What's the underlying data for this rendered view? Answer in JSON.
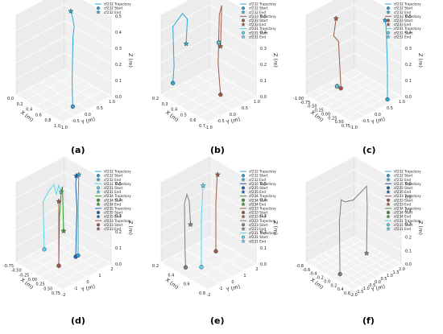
{
  "figure": {
    "panel_labels": [
      "(a)",
      "(b)",
      "(c)",
      "(d)",
      "(e)",
      "(f)"
    ]
  },
  "colors": {
    "cf232": "#29a8d8",
    "cf233": "#a05a4a",
    "cf231": "#59d4f0",
    "cf234": "#3a9a2a",
    "cf235": "#1f5fb0",
    "cf223": "#7f7f7f",
    "grid": "#d0d0d0",
    "pane": "#f4f4f4"
  },
  "chart_data": [
    {
      "type": "line",
      "panel": "(a)",
      "legend": [
        {
          "text": "cf232 Trajectory",
          "kind": "line",
          "color": "#29a8d8"
        },
        {
          "text": "cf232 Start",
          "kind": "circle",
          "color": "#29a8d8"
        },
        {
          "text": "cf232 End",
          "kind": "star",
          "color": "#29a8d8"
        }
      ],
      "xlabel": "X (m)",
      "ylabel": "Y (m)",
      "zlabel": "Z (m)",
      "xticks": [
        "0.0",
        "0.2",
        "0.4",
        "0.6",
        "0.8",
        "1.0"
      ],
      "yticks": [
        "-1.0",
        "-0.5",
        "0.0",
        "0.5",
        "1.0"
      ],
      "zticks": [
        "0.0",
        "0.1",
        "0.2",
        "0.3",
        "0.4",
        "0.5"
      ],
      "series": [
        {
          "name": "cf232",
          "color": "#29a8d8",
          "x": [
            0.8,
            0.78,
            0.76,
            0.74,
            0.72,
            0.7,
            0.7,
            0.69,
            0.68
          ],
          "y": [
            -0.2,
            -0.18,
            -0.15,
            -0.1,
            -0.05,
            0.0,
            0.05,
            0.0,
            -0.05
          ],
          "z": [
            0.0,
            0.08,
            0.16,
            0.24,
            0.32,
            0.4,
            0.46,
            0.52,
            0.56
          ]
        }
      ]
    },
    {
      "type": "line",
      "panel": "(b)",
      "legend": [
        {
          "text": "cf232 Trajectory",
          "kind": "line",
          "color": "#29a8d8"
        },
        {
          "text": "cf232 Start",
          "kind": "circle",
          "color": "#29a8d8"
        },
        {
          "text": "cf232 End",
          "kind": "star",
          "color": "#29a8d8"
        },
        {
          "text": "cf233 Trajectory",
          "kind": "line",
          "color": "#a05a4a"
        },
        {
          "text": "cf233 Start",
          "kind": "circle",
          "color": "#a05a4a"
        },
        {
          "text": "cf233 End",
          "kind": "star",
          "color": "#a05a4a"
        },
        {
          "text": "cf231 Trajectory",
          "kind": "line",
          "color": "#59d4f0"
        },
        {
          "text": "cf231 Start",
          "kind": "circle",
          "color": "#59d4f0"
        },
        {
          "text": "cf231 End",
          "kind": "star",
          "color": "#59d4f0"
        }
      ],
      "xlabel": "X (m)",
      "ylabel": "Y (m)",
      "zlabel": "Z (m)",
      "xticks": [
        "0.2",
        "0.3",
        "0.4",
        "0.5",
        "0.6",
        "0.7"
      ],
      "yticks": [
        "-1.0",
        "-0.5",
        "0.0",
        "0.5",
        "1.0"
      ],
      "zticks": [
        "0.0",
        "0.1",
        "0.2",
        "0.3",
        "0.4",
        "0.5"
      ],
      "series": [
        {
          "name": "cf232",
          "color": "#29a8d8",
          "x": [
            0.3,
            0.3,
            0.3,
            0.3,
            0.3,
            0.3
          ],
          "y": [
            -0.9,
            -0.85,
            -0.9,
            -0.5,
            -0.3,
            -0.35
          ],
          "z": [
            0.1,
            0.2,
            0.45,
            0.5,
            0.45,
            0.3
          ]
        },
        {
          "name": "cf233",
          "color": "#a05a4a",
          "x": [
            0.5,
            0.5,
            0.5,
            0.5,
            0.5
          ],
          "y": [
            0.3,
            0.2,
            0.25,
            0.35,
            0.3
          ],
          "z": [
            0.0,
            0.2,
            0.5,
            0.55,
            0.3
          ]
        },
        {
          "name": "cf231",
          "color": "#59d4f0",
          "x": [
            0.3,
            0.3
          ],
          "y": [
            1.0,
            1.0
          ],
          "z": [
            0.2,
            0.2
          ]
        }
      ]
    },
    {
      "type": "line",
      "panel": "(c)",
      "legend": [
        {
          "text": "cf232 Trajectory",
          "kind": "line",
          "color": "#29a8d8"
        },
        {
          "text": "cf232 Start",
          "kind": "circle",
          "color": "#29a8d8"
        },
        {
          "text": "cf232 End",
          "kind": "star",
          "color": "#29a8d8"
        },
        {
          "text": "cf233 Trajectory",
          "kind": "line",
          "color": "#a05a4a"
        },
        {
          "text": "cf233 Start",
          "kind": "circle",
          "color": "#a05a4a"
        },
        {
          "text": "cf233 End",
          "kind": "star",
          "color": "#a05a4a"
        },
        {
          "text": "cf231 Trajectory",
          "kind": "line",
          "color": "#59d4f0"
        },
        {
          "text": "cf231 Start",
          "kind": "circle",
          "color": "#59d4f0"
        },
        {
          "text": "cf231 End",
          "kind": "star",
          "color": "#59d4f0"
        }
      ],
      "xlabel": "X (m)",
      "ylabel": "Y (m)",
      "zlabel": "Z (m)",
      "xticks": [
        "-1.00",
        "-0.75",
        "-0.50",
        "-0.25",
        "0.00",
        "0.25",
        "0.50",
        "0.75"
      ],
      "yticks": [
        "-1.0",
        "-0.5",
        "0.0",
        "0.5",
        "1.0"
      ],
      "zticks": [
        "0.0",
        "0.1",
        "0.2",
        "0.3",
        "0.4",
        "0.5"
      ],
      "series": [
        {
          "name": "cf232",
          "color": "#29a8d8",
          "x": [
            0.6,
            0.6,
            0.6,
            0.6
          ],
          "y": [
            0.6,
            0.6,
            0.55,
            0.5
          ],
          "z": [
            0.0,
            0.2,
            0.45,
            0.5
          ]
        },
        {
          "name": "cf233",
          "color": "#a05a4a",
          "x": [
            -0.6,
            -0.6,
            -0.6,
            -0.6
          ],
          "y": [
            0.0,
            -0.1,
            -0.3,
            -0.2
          ],
          "z": [
            0.0,
            0.3,
            0.35,
            0.45
          ]
        },
        {
          "name": "cf231",
          "color": "#59d4f0",
          "x": [
            -0.2,
            -0.2
          ],
          "y": [
            -0.6,
            -0.6
          ],
          "z": [
            0.1,
            0.1
          ]
        }
      ]
    },
    {
      "type": "line",
      "panel": "(d)",
      "legend": [
        {
          "text": "cf232 Trajectory",
          "kind": "line",
          "color": "#29a8d8"
        },
        {
          "text": "cf232 Start",
          "kind": "circle",
          "color": "#29a8d8"
        },
        {
          "text": "cf232 End",
          "kind": "star",
          "color": "#29a8d8"
        },
        {
          "text": "cf231 Trajectory",
          "kind": "line",
          "color": "#59d4f0"
        },
        {
          "text": "cf231 Start",
          "kind": "circle",
          "color": "#59d4f0"
        },
        {
          "text": "cf231 End",
          "kind": "star",
          "color": "#59d4f0"
        },
        {
          "text": "cf234 Trajectory",
          "kind": "line",
          "color": "#3a9a2a"
        },
        {
          "text": "cf234 Start",
          "kind": "circle",
          "color": "#3a9a2a"
        },
        {
          "text": "cf234 End",
          "kind": "star",
          "color": "#3a9a2a"
        },
        {
          "text": "cf235 Trajectory",
          "kind": "line",
          "color": "#1f5fb0"
        },
        {
          "text": "cf235 Start",
          "kind": "circle",
          "color": "#1f5fb0"
        },
        {
          "text": "cf235 End",
          "kind": "star",
          "color": "#1f5fb0"
        },
        {
          "text": "cf233 Trajectory",
          "kind": "line",
          "color": "#a05a4a"
        },
        {
          "text": "cf233 Start",
          "kind": "circle",
          "color": "#a05a4a"
        },
        {
          "text": "cf233 End",
          "kind": "star",
          "color": "#a05a4a"
        }
      ],
      "xlabel": "X (m)",
      "ylabel": "Y (m)",
      "zlabel": "Z (m)",
      "xticks": [
        "-0.75",
        "-0.50",
        "-0.25",
        "0.00",
        "0.25",
        "0.50",
        "0.75"
      ],
      "yticks": [
        "-2",
        "-1",
        "0",
        "1",
        "2"
      ],
      "zticks": [
        "0.0",
        "0.1",
        "0.2",
        "0.3",
        "0.4",
        "0.5"
      ],
      "series": [
        {
          "name": "cf231",
          "color": "#59d4f0",
          "x": [
            0.0,
            0.0,
            0.0,
            0.0,
            0.0,
            0.0,
            0.0
          ],
          "y": [
            -1.6,
            -1.7,
            -1.2,
            -0.8,
            -0.6,
            -0.4,
            -0.2
          ],
          "z": [
            0.15,
            0.45,
            0.5,
            0.52,
            0.45,
            0.5,
            0.45
          ]
        },
        {
          "name": "cf234",
          "color": "#3a9a2a",
          "x": [
            0.0,
            0.0,
            0.0,
            0.0,
            0.0
          ],
          "y": [
            -0.4,
            -0.35,
            -0.2,
            -0.1,
            0.0
          ],
          "z": [
            0.0,
            0.3,
            0.45,
            0.48,
            0.2
          ]
        },
        {
          "name": "cf233",
          "color": "#a05a4a",
          "x": [
            0.0,
            0.0,
            0.0
          ],
          "y": [
            -0.4,
            -0.4,
            -0.4
          ],
          "z": [
            0.0,
            0.3,
            0.4
          ]
        },
        {
          "name": "cf235",
          "color": "#1f5fb0",
          "x": [
            0.0,
            0.0,
            0.0,
            0.0
          ],
          "y": [
            1.0,
            1.1,
            1.0,
            1.05
          ],
          "z": [
            0.0,
            0.3,
            0.45,
            0.5
          ]
        },
        {
          "name": "cf232",
          "color": "#29a8d8",
          "x": [
            0.0,
            0.0,
            0.0
          ],
          "y": [
            1.2,
            1.2,
            1.25
          ],
          "z": [
            0.0,
            0.3,
            0.5
          ]
        }
      ]
    },
    {
      "type": "line",
      "panel": "(e)",
      "legend": [
        {
          "text": "cf232 Trajectory",
          "kind": "line",
          "color": "#29a8d8"
        },
        {
          "text": "cf232 Start",
          "kind": "circle",
          "color": "#29a8d8"
        },
        {
          "text": "cf232 End",
          "kind": "star",
          "color": "#29a8d8"
        },
        {
          "text": "cf235 Trajectory",
          "kind": "line",
          "color": "#1f5fb0"
        },
        {
          "text": "cf235 Start",
          "kind": "circle",
          "color": "#1f5fb0"
        },
        {
          "text": "cf235 End",
          "kind": "star",
          "color": "#1f5fb0"
        },
        {
          "text": "cf234 Trajectory",
          "kind": "line",
          "color": "#3a9a2a"
        },
        {
          "text": "cf234 Start",
          "kind": "circle",
          "color": "#3a9a2a"
        },
        {
          "text": "cf234 End",
          "kind": "star",
          "color": "#3a9a2a"
        },
        {
          "text": "cf233 Trajectory",
          "kind": "line",
          "color": "#a05a4a"
        },
        {
          "text": "cf233 Start",
          "kind": "circle",
          "color": "#a05a4a"
        },
        {
          "text": "cf233 End",
          "kind": "star",
          "color": "#a05a4a"
        },
        {
          "text": "cf223 Trajectory",
          "kind": "line",
          "color": "#7f7f7f"
        },
        {
          "text": "cf223 Start",
          "kind": "circle",
          "color": "#7f7f7f"
        },
        {
          "text": "cf223 End",
          "kind": "star",
          "color": "#7f7f7f"
        },
        {
          "text": "cf231 Trajectory",
          "kind": "line",
          "color": "#59d4f0"
        },
        {
          "text": "cf231 Start",
          "kind": "circle",
          "color": "#59d4f0"
        },
        {
          "text": "cf231 End",
          "kind": "star",
          "color": "#59d4f0"
        }
      ],
      "xlabel": "X (m)",
      "ylabel": "Y (m)",
      "zlabel": "Z (m)",
      "xticks": [
        "0.2",
        "0.4",
        "0.6",
        "0.8"
      ],
      "yticks": [
        "-2",
        "-1",
        "0",
        "1",
        "2"
      ],
      "zticks": [
        "0.0",
        "0.1",
        "0.2",
        "0.3",
        "0.4",
        "0.5"
      ],
      "series": [
        {
          "name": "cf223",
          "color": "#7f7f7f",
          "x": [
            0.5,
            0.5,
            0.5,
            0.5,
            0.5,
            0.5
          ],
          "y": [
            -1.9,
            -1.95,
            -2.0,
            -1.8,
            -1.6,
            -1.5
          ],
          "z": [
            0.05,
            0.15,
            0.45,
            0.5,
            0.45,
            0.3
          ]
        },
        {
          "name": "cf231",
          "color": "#59d4f0",
          "x": [
            0.5,
            0.5,
            0.5,
            0.5
          ],
          "y": [
            -0.6,
            -0.6,
            -0.5,
            -0.45
          ],
          "z": [
            0.0,
            0.3,
            0.45,
            0.5
          ]
        },
        {
          "name": "cf233",
          "color": "#a05a4a",
          "x": [
            0.5,
            0.5,
            0.5,
            0.5
          ],
          "y": [
            0.6,
            0.6,
            0.7,
            0.75
          ],
          "z": [
            0.05,
            0.35,
            0.5,
            0.52
          ]
        }
      ]
    },
    {
      "type": "line",
      "panel": "(f)",
      "legend": [
        {
          "text": "cf232 Trajectory",
          "kind": "line",
          "color": "#29a8d8"
        },
        {
          "text": "cf232 Start",
          "kind": "circle",
          "color": "#29a8d8"
        },
        {
          "text": "cf232 End",
          "kind": "star",
          "color": "#29a8d8"
        },
        {
          "text": "cf235 Trajectory",
          "kind": "line",
          "color": "#1f5fb0"
        },
        {
          "text": "cf235 Start",
          "kind": "circle",
          "color": "#1f5fb0"
        },
        {
          "text": "cf235 End",
          "kind": "star",
          "color": "#1f5fb0"
        },
        {
          "text": "cf233 Trajectory",
          "kind": "line",
          "color": "#a05a4a"
        },
        {
          "text": "cf233 Start",
          "kind": "circle",
          "color": "#a05a4a"
        },
        {
          "text": "cf233 End",
          "kind": "star",
          "color": "#a05a4a"
        },
        {
          "text": "cf234 Trajectory",
          "kind": "line",
          "color": "#3a9a2a"
        },
        {
          "text": "cf234 Start",
          "kind": "circle",
          "color": "#3a9a2a"
        },
        {
          "text": "cf234 End",
          "kind": "star",
          "color": "#3a9a2a"
        },
        {
          "text": "cf231 Trajectory",
          "kind": "line",
          "color": "#59d4f0"
        },
        {
          "text": "cf231 Start",
          "kind": "circle",
          "color": "#59d4f0"
        },
        {
          "text": "cf231 End",
          "kind": "star",
          "color": "#59d4f0"
        }
      ],
      "xlabel": "X (m)",
      "ylabel": "Y (m)",
      "zlabel": "Z (m)",
      "xticks": [
        "-0.8",
        "-0.6",
        "-0.4",
        "-0.2",
        "0.0",
        "0.2",
        "0.4",
        "0.6"
      ],
      "yticks": [
        "-2.0",
        "-1.5",
        "-1.0",
        "-0.5",
        "0.0",
        "0.5",
        "1.0",
        "1.5",
        "2.0"
      ],
      "zticks": [
        "0.0",
        "0.1",
        "0.2",
        "0.3",
        "0.4",
        "0.5",
        "0.6"
      ],
      "series": [
        {
          "name": "cf223",
          "color": "#7f7f7f",
          "x": [
            0.0,
            0.0,
            0.0,
            0.0,
            0.0,
            0.0,
            0.0,
            0.0
          ],
          "y": [
            -1.4,
            -1.45,
            -1.3,
            -1.0,
            -0.3,
            0.8,
            0.85,
            0.8
          ],
          "z": [
            0.0,
            0.4,
            0.55,
            0.52,
            0.5,
            0.55,
            0.4,
            0.05
          ]
        }
      ]
    }
  ]
}
